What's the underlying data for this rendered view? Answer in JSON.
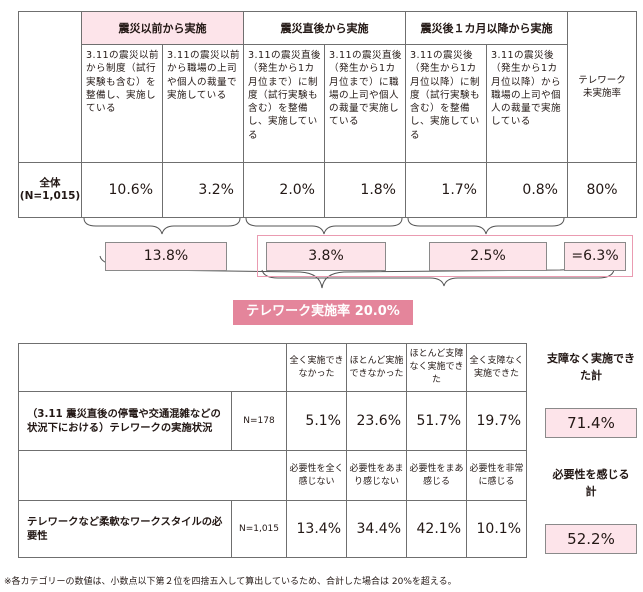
{
  "top_table": {
    "groups": [
      {
        "label": "震災以前から実施",
        "highlight": true
      },
      {
        "label": "震災直後から実施",
        "highlight": false
      },
      {
        "label": "震災後１カ月以降から実施",
        "highlight": false
      }
    ],
    "columns": [
      "3.11の震災以前から制度（試行実験も含む）を整備し、実施している",
      "3.11の震災以前から職場の上司や個人の裁量で実施している",
      "3.11の震災直後（発生から1カ月位まで）に制度（試行実験も含む）を整備し、実施している",
      "3.11の震災直後（発生から1カ月位まで）に職場の上司や個人の裁量で実施している",
      "3.11の震災後（発生から1カ月位以降）に制度（試行実験も含む）を整備し、実施している",
      "3.11の震災後（発生から1カ月位以降）から職場の上司や個人の裁量で実施している"
    ],
    "last_column": "テレワーク未実施率",
    "row": {
      "label_line1": "全体",
      "label_line2": "(N=1,015)",
      "values": [
        "10.6%",
        "3.2%",
        "2.0%",
        "1.8%",
        "1.7%",
        "0.8%"
      ],
      "last_value": "80%"
    }
  },
  "subtotals": {
    "mark": "※",
    "before": "13.8%",
    "after_quake": "3.8%",
    "after_month": "2.5%",
    "combined": "=6.3%"
  },
  "banner": "テレワーク実施率 20.0%",
  "bottom_table": {
    "header1": [
      "全く実施できなかった",
      "ほとんど実施できなかった",
      "ほとんど支障なく実施できた",
      "全く支障なく実施できた"
    ],
    "header2": [
      "必要性を全く感じない",
      "必要性をあまり感じない",
      "必要性をまあ感じる",
      "必要性を非常に感じる"
    ],
    "row1": {
      "label": "（3.11 震災直後の停電や交通混雑などの状況下における）テレワークの実施状況",
      "n": "N=178",
      "values": [
        "5.1%",
        "23.6%",
        "51.7%",
        "19.7%"
      ]
    },
    "row2": {
      "label": "テレワークなど柔軟なワークスタイルの必要性",
      "n": "N=1,015",
      "values": [
        "13.4%",
        "34.4%",
        "42.1%",
        "10.1%"
      ]
    }
  },
  "side": {
    "label1": "支障なく実施できた計",
    "value1": "71.4%",
    "label2": "必要性を感じる計",
    "value2": "52.2%"
  },
  "footnote": "※各カテゴリーの数値は、小数点以下第２位を四捨五入して算出しているため、合計した場合は 20%を超える。"
}
